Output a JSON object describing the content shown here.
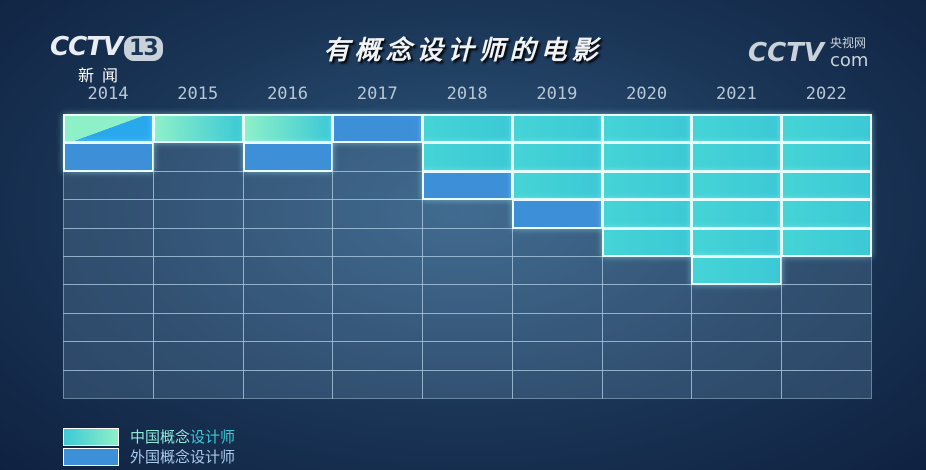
{
  "header": {
    "logo_text": "CCTV",
    "channel": "13",
    "logo_sub": "新闻",
    "title": "有概念设计师的电影",
    "right_logo": "CCTV",
    "right_logo_cn": "央视网",
    "right_logo_com": "com"
  },
  "chart_data": {
    "type": "bar",
    "title": "有概念设计师的电影",
    "categories": [
      "2014",
      "2015",
      "2016",
      "2017",
      "2018",
      "2019",
      "2020",
      "2021",
      "2022"
    ],
    "series": [
      {
        "name": "中国概念设计师",
        "values": [
          0.5,
          1,
          1,
          0,
          2,
          3,
          5,
          6,
          5
        ],
        "color": "#3cc9d6"
      },
      {
        "name": "外国概念设计师",
        "values": [
          1.5,
          0,
          1,
          1,
          1,
          1,
          0,
          0,
          0
        ],
        "color": "#3d8fd8"
      }
    ],
    "ylim": [
      0,
      10
    ],
    "grid": true,
    "legend": "bottom-left"
  },
  "legend": {
    "items": [
      {
        "label_a": "中国概念",
        "label_b": "设计师"
      },
      {
        "label_a": "外国概念设计师",
        "label_b": ""
      }
    ]
  }
}
